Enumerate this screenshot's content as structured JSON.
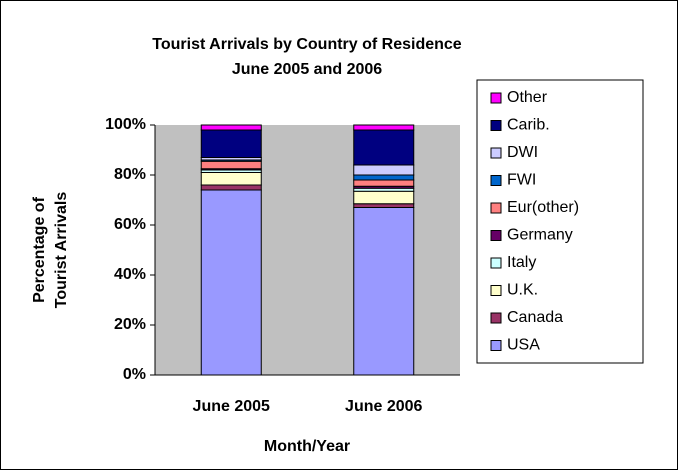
{
  "chart_data": {
    "type": "stacked_bar",
    "title_lines": [
      "Tourist Arrivals by Country of Residence",
      "June 2005 and 2006"
    ],
    "ylabel_lines": [
      "Percentage of",
      "Tourist Arrivals"
    ],
    "xlabel": "Month/Year",
    "categories": [
      "June 2005",
      "June 2006"
    ],
    "series": [
      {
        "name": "USA",
        "color": "#9999ff",
        "values": [
          74,
          67
        ]
      },
      {
        "name": "Canada",
        "color": "#993366",
        "values": [
          2,
          1.5
        ]
      },
      {
        "name": "U.K.",
        "color": "#ffffcc",
        "values": [
          5,
          5
        ]
      },
      {
        "name": "Italy",
        "color": "#ccffff",
        "values": [
          1,
          1.2
        ]
      },
      {
        "name": "Germany",
        "color": "#660066",
        "values": [
          0.5,
          0.8
        ]
      },
      {
        "name": "Eur(other)",
        "color": "#ff8080",
        "values": [
          3,
          2.5
        ]
      },
      {
        "name": "FWI",
        "color": "#0066cc",
        "values": [
          0.5,
          2
        ]
      },
      {
        "name": "DWI",
        "color": "#ccccff",
        "values": [
          1,
          4
        ]
      },
      {
        "name": "Carib.",
        "color": "#000080",
        "values": [
          11,
          14
        ]
      },
      {
        "name": "Other",
        "color": "#ff00ff",
        "values": [
          2,
          2
        ]
      }
    ],
    "ylim": [
      0,
      100
    ],
    "yticks": [
      {
        "value": 0,
        "label": "0%"
      },
      {
        "value": 20,
        "label": "20%"
      },
      {
        "value": 40,
        "label": "40%"
      },
      {
        "value": 60,
        "label": "60%"
      },
      {
        "value": 80,
        "label": "80%"
      },
      {
        "value": 100,
        "label": "100%"
      }
    ],
    "grid": false,
    "plot_background": "#c0c0c0",
    "legend": "right"
  }
}
